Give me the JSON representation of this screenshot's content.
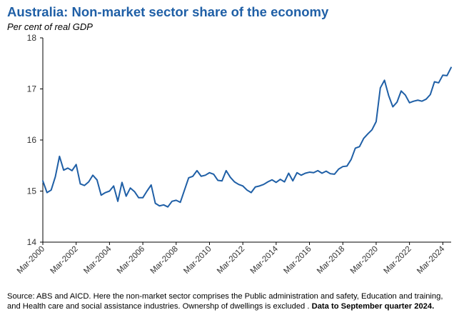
{
  "title": "Australia: Non-market sector share of the economy",
  "subtitle": "Per cent of real GDP",
  "source": {
    "text": "Source: ABS and AICD. Here the non-market sector comprises the Public administration and safety, Education and training, and Health care and social assistance industries. Ownershp of dwellings is excluded . ",
    "bold": "Data to September quarter 2024."
  },
  "colors": {
    "line": "#1f5fa6",
    "title": "#1f5fa6",
    "axis": "#000000",
    "tick_label": "#333333"
  },
  "chart_data": {
    "type": "line",
    "title": "Australia: Non-market sector share of the economy",
    "ylabel": "Per cent of real GDP",
    "xlabel": "",
    "ylim": [
      14,
      18
    ],
    "yticks": [
      14,
      15,
      16,
      17,
      18
    ],
    "grid": false,
    "x_tick_labels": [
      "Mar-2000",
      "Mar-2002",
      "Mar-2004",
      "Mar-2006",
      "Mar-2008",
      "Mar-2010",
      "Mar-2012",
      "Mar-2014",
      "Mar-2016",
      "Mar-2018",
      "Mar-2020",
      "Mar-2022",
      "Mar-2024"
    ],
    "x_start": "Mar-2000",
    "x_end": "Sep-2024",
    "frequency": "quarterly",
    "values": [
      15.2,
      14.97,
      15.02,
      15.28,
      15.68,
      15.41,
      15.45,
      15.4,
      15.52,
      15.14,
      15.11,
      15.18,
      15.31,
      15.22,
      14.92,
      14.97,
      15.0,
      15.1,
      14.8,
      15.17,
      14.9,
      15.06,
      14.99,
      14.87,
      14.87,
      15.0,
      15.12,
      14.76,
      14.71,
      14.73,
      14.69,
      14.8,
      14.82,
      14.78,
      15.02,
      15.26,
      15.29,
      15.4,
      15.29,
      15.31,
      15.36,
      15.33,
      15.21,
      15.2,
      15.4,
      15.27,
      15.18,
      15.13,
      15.1,
      15.02,
      14.97,
      15.08,
      15.1,
      15.13,
      15.18,
      15.22,
      15.17,
      15.23,
      15.18,
      15.35,
      15.2,
      15.36,
      15.31,
      15.35,
      15.37,
      15.36,
      15.4,
      15.35,
      15.39,
      15.34,
      15.33,
      15.43,
      15.48,
      15.49,
      15.62,
      15.84,
      15.87,
      16.03,
      16.12,
      16.2,
      16.36,
      17.02,
      17.17,
      16.87,
      16.65,
      16.74,
      16.96,
      16.88,
      16.73,
      16.76,
      16.78,
      16.76,
      16.8,
      16.89,
      17.14,
      17.12,
      17.27,
      17.26,
      17.42
    ]
  }
}
